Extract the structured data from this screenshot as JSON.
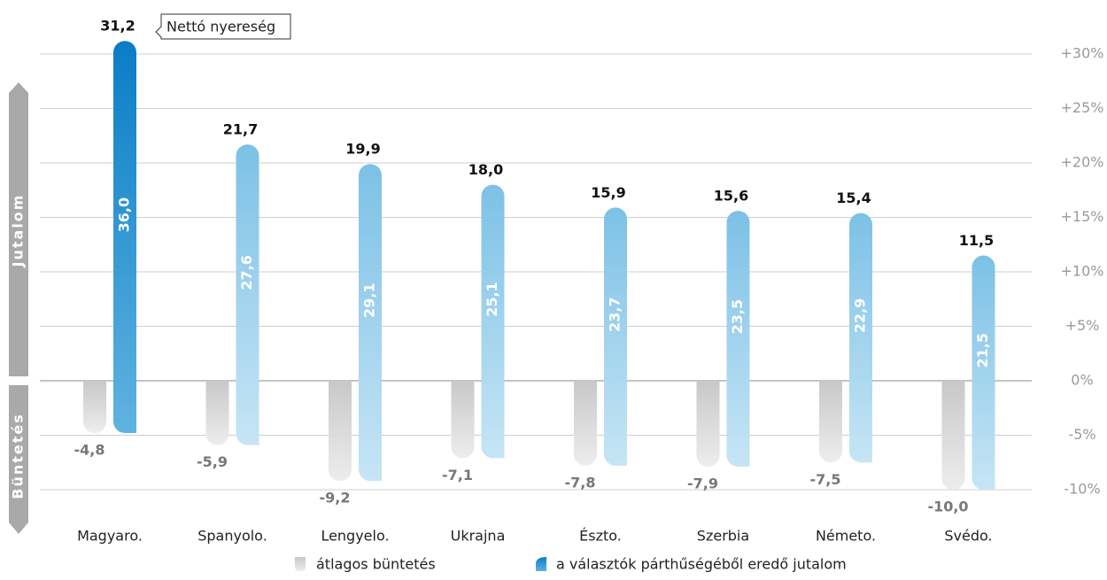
{
  "chart_data": {
    "type": "bar",
    "categories": [
      "Magyaro.",
      "Spanyolo.",
      "Lengyelo.",
      "Ukrajna",
      "Észto.",
      "Szerbia",
      "Németo.",
      "Svédo."
    ],
    "series": [
      {
        "name": "átlagos büntetés",
        "color": "#d6d6d6",
        "values": [
          -4.8,
          -5.9,
          -9.2,
          -7.1,
          -7.8,
          -7.9,
          -7.5,
          -10.0
        ],
        "value_labels": [
          "-4,8",
          "-5,9",
          "-9,2",
          "-7,1",
          "-7,8",
          "-7,9",
          "-7,5",
          "-10,0"
        ]
      },
      {
        "name": "a választók párthűségéből eredő jutalom",
        "color": "#8ecbea",
        "colors": [
          "#1484cc",
          "#8ecbea",
          "#8ecbea",
          "#8ecbea",
          "#8ecbea",
          "#8ecbea",
          "#8ecbea",
          "#8ecbea"
        ],
        "values": [
          36.0,
          27.6,
          29.1,
          25.1,
          23.7,
          23.5,
          22.9,
          21.5
        ],
        "value_labels": [
          "36,0",
          "27,6",
          "29,1",
          "25,1",
          "23,7",
          "23,5",
          "22,9",
          "21,5"
        ]
      }
    ],
    "net_values": [
      31.2,
      21.7,
      19.9,
      18.0,
      15.9,
      15.6,
      15.4,
      11.5
    ],
    "net_labels": [
      "31,2",
      "21,7",
      "19,9",
      "18,0",
      "15,9",
      "15,6",
      "15,4",
      "11,5"
    ],
    "annotation": "Nettó nyereség",
    "side_labels": {
      "top": "Jutalom",
      "bottom": "Büntetés"
    },
    "ylim": [
      -10,
      30
    ],
    "yticks": [
      {
        "value": -10,
        "label": "-10%"
      },
      {
        "value": -5,
        "label": "-5%"
      },
      {
        "value": 0,
        "label": "0%"
      },
      {
        "value": 5,
        "label": "+5%"
      },
      {
        "value": 10,
        "label": "+10%"
      },
      {
        "value": 15,
        "label": "+15%"
      },
      {
        "value": 20,
        "label": "+20%"
      },
      {
        "value": 25,
        "label": "+25%"
      },
      {
        "value": 30,
        "label": "+30%"
      }
    ],
    "grid": true
  }
}
